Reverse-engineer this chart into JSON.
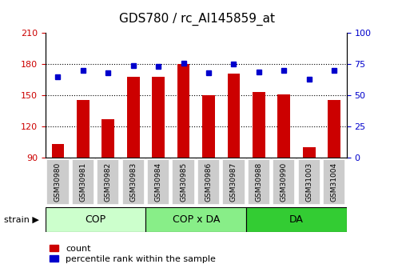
{
  "title": "GDS780 / rc_AI145859_at",
  "samples": [
    "GSM30980",
    "GSM30981",
    "GSM30982",
    "GSM30983",
    "GSM30984",
    "GSM30985",
    "GSM30986",
    "GSM30987",
    "GSM30988",
    "GSM30990",
    "GSM31003",
    "GSM31004"
  ],
  "counts": [
    103,
    145,
    127,
    168,
    168,
    180,
    150,
    171,
    153,
    151,
    100,
    145
  ],
  "percentiles": [
    65,
    70,
    68,
    74,
    73,
    76,
    68,
    75,
    69,
    70,
    63,
    70
  ],
  "groups": [
    {
      "label": "COP",
      "start": 0,
      "end": 3,
      "color": "#ccffcc"
    },
    {
      "label": "COP x DA",
      "start": 4,
      "end": 7,
      "color": "#88ee88"
    },
    {
      "label": "DA",
      "start": 8,
      "end": 11,
      "color": "#33cc33"
    }
  ],
  "ylim_left": [
    90,
    210
  ],
  "ylim_right": [
    0,
    100
  ],
  "yticks_left": [
    90,
    120,
    150,
    180,
    210
  ],
  "yticks_right": [
    0,
    25,
    50,
    75,
    100
  ],
  "grid_ticks": [
    120,
    150,
    180
  ],
  "bar_color": "#cc0000",
  "dot_color": "#0000cc",
  "bar_width": 0.5,
  "title_fontsize": 11,
  "tick_fontsize": 8,
  "sample_fontsize": 6.5,
  "group_fontsize": 9,
  "legend_fontsize": 8,
  "strain_fontsize": 8,
  "xtick_bg": "#cccccc",
  "plot_bg": "#ffffff",
  "n": 12
}
